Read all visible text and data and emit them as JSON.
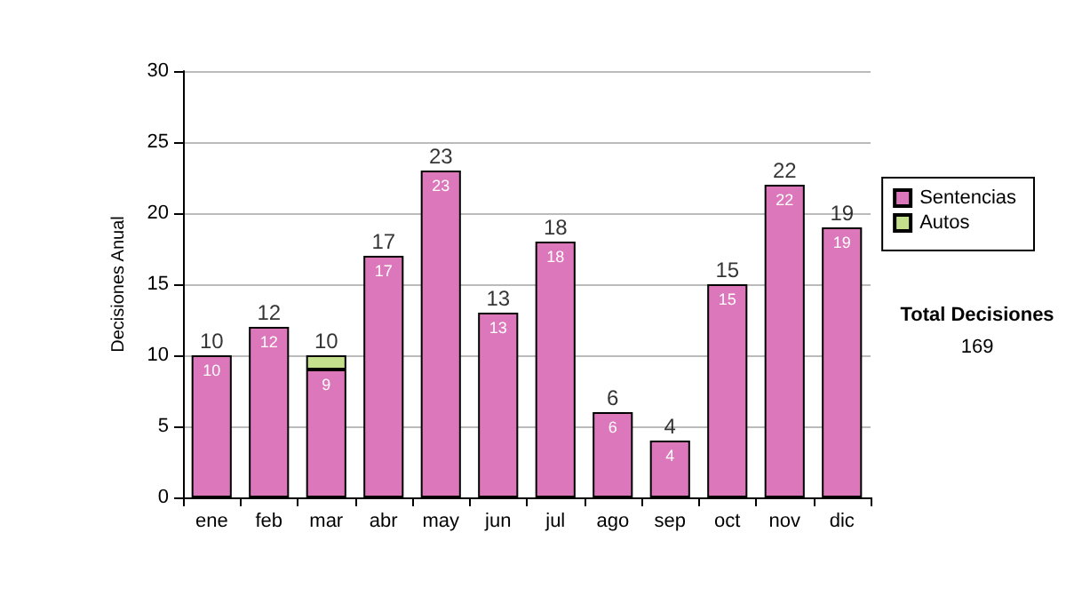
{
  "chart_data": {
    "type": "bar",
    "ylabel": "Decisiones Anual",
    "categories": [
      "ene",
      "feb",
      "mar",
      "abr",
      "may",
      "jun",
      "jul",
      "ago",
      "sep",
      "oct",
      "nov",
      "dic"
    ],
    "series": [
      {
        "name": "Sentencias",
        "color": "#dd77bb",
        "values": [
          10,
          12,
          9,
          17,
          23,
          13,
          18,
          6,
          4,
          15,
          22,
          19
        ],
        "value_labels": [
          "10",
          "12",
          "9",
          "17",
          "23",
          "13",
          "18",
          "6",
          "4",
          "15",
          "22",
          "19"
        ]
      },
      {
        "name": "Autos",
        "color": "#c4e08c",
        "values": [
          null,
          null,
          1,
          null,
          null,
          null,
          null,
          null,
          null,
          null,
          null,
          null
        ]
      }
    ],
    "stacked": true,
    "totals": [
      "10",
      "12",
      "10",
      "17",
      "23",
      "13",
      "18",
      "6",
      "4",
      "15",
      "22",
      "19"
    ],
    "ylim": [
      0,
      30
    ],
    "yticks": [
      0,
      5,
      10,
      15,
      20,
      25,
      30
    ],
    "grid": "y",
    "legend": "right",
    "annotations": [
      "Total Decisiones",
      "169"
    ]
  }
}
